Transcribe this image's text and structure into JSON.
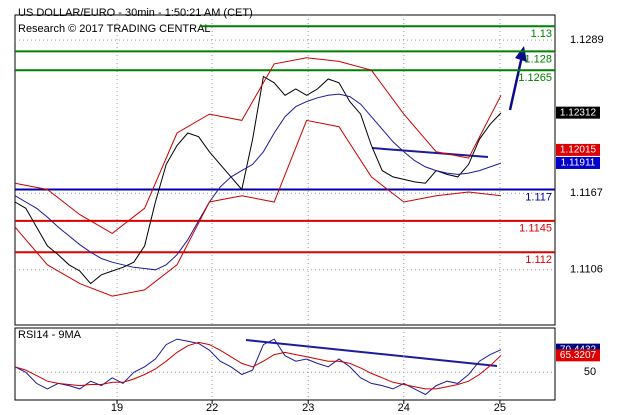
{
  "chart_data": [
    {
      "type": "line",
      "title": "US DOLLAR/EURO - 30min - 1:50:21 AM (CET)",
      "subtitle": "Research © 2017 TRADING CENTRAL",
      "xlim": [
        0,
        100
      ],
      "ylim": [
        1.1062,
        1.1309
      ],
      "xticks": [
        {
          "value": 18.9,
          "label": "19"
        },
        {
          "value": 36.5,
          "label": "22"
        },
        {
          "value": 54.3,
          "label": "23"
        },
        {
          "value": 72,
          "label": "24"
        },
        {
          "value": 89.8,
          "label": "25"
        }
      ],
      "yticks": [
        1.1289,
        1.1167,
        1.1106
      ],
      "grid": true,
      "series": [
        {
          "color": "#000000",
          "x": [
            0,
            2,
            4,
            6,
            8,
            10,
            12,
            14,
            16,
            18,
            20,
            22,
            24,
            26,
            28,
            30,
            32,
            34,
            36,
            38,
            40,
            42,
            44,
            46,
            48,
            50,
            52,
            54,
            56,
            58,
            60,
            62,
            64,
            66,
            68,
            70,
            72,
            74,
            76,
            78,
            80,
            82,
            84,
            86,
            88,
            90
          ],
          "values": [
            1.116,
            1.1155,
            1.114,
            1.1125,
            1.1118,
            1.111,
            1.1105,
            1.1095,
            1.1102,
            1.1105,
            1.1108,
            1.1112,
            1.1125,
            1.116,
            1.119,
            1.1205,
            1.1215,
            1.1212,
            1.12,
            1.119,
            1.118,
            1.117,
            1.121,
            1.126,
            1.1255,
            1.1245,
            1.125,
            1.1245,
            1.125,
            1.1258,
            1.1255,
            1.124,
            1.123,
            1.1205,
            1.1185,
            1.118,
            1.1178,
            1.1176,
            1.1175,
            1.1185,
            1.1182,
            1.118,
            1.119,
            1.121,
            1.1222,
            1.1231
          ]
        },
        {
          "color": "#1c1c9c",
          "x": [
            0,
            2,
            4,
            6,
            8,
            10,
            12,
            14,
            16,
            18,
            20,
            22,
            24,
            26,
            28,
            30,
            32,
            34,
            36,
            38,
            40,
            42,
            44,
            46,
            48,
            50,
            52,
            54,
            56,
            58,
            60,
            62,
            64,
            66,
            68,
            70,
            72,
            74,
            76,
            78,
            80,
            82,
            84,
            86,
            88,
            90
          ],
          "values": [
            1.1165,
            1.116,
            1.1155,
            1.1148,
            1.114,
            1.1133,
            1.1126,
            1.112,
            1.1115,
            1.1112,
            1.111,
            1.1108,
            1.1107,
            1.1106,
            1.111,
            1.1118,
            1.113,
            1.1145,
            1.116,
            1.1172,
            1.118,
            1.1185,
            1.119,
            1.12,
            1.1215,
            1.1228,
            1.1236,
            1.124,
            1.1243,
            1.1245,
            1.1246,
            1.1244,
            1.1238,
            1.1228,
            1.1218,
            1.1208,
            1.12,
            1.1193,
            1.1188,
            1.1185,
            1.1183,
            1.1182,
            1.1183,
            1.1185,
            1.1188,
            1.1191
          ]
        },
        {
          "color": "#cc0000",
          "x": [
            0,
            6,
            12,
            18,
            24,
            30,
            36,
            42,
            48,
            54,
            60,
            66,
            72,
            78,
            84,
            90
          ],
          "values": [
            1.1175,
            1.117,
            1.115,
            1.1135,
            1.1155,
            1.1215,
            1.123,
            1.1225,
            1.127,
            1.1275,
            1.1272,
            1.1265,
            1.123,
            1.12,
            1.1195,
            1.1245
          ]
        },
        {
          "color": "#cc0000",
          "x": [
            0,
            6,
            12,
            18,
            24,
            30,
            36,
            42,
            48,
            54,
            60,
            66,
            72,
            78,
            84,
            90
          ],
          "values": [
            1.114,
            1.111,
            1.1095,
            1.1085,
            1.109,
            1.111,
            1.116,
            1.1165,
            1.116,
            1.1225,
            1.122,
            1.118,
            1.116,
            1.1165,
            1.1168,
            1.1165
          ]
        }
      ],
      "levels": [
        {
          "value": 1.13,
          "color": "#008000"
        },
        {
          "value": 1.128,
          "color": "#008000"
        },
        {
          "value": 1.1265,
          "color": "#008000"
        },
        {
          "value": 1.117,
          "color": "#0000aa"
        },
        {
          "value": 1.1145,
          "color": "#dd0000"
        },
        {
          "value": 1.112,
          "color": "#dd0000"
        }
      ],
      "price_tags": [
        {
          "value": 1.12312,
          "color": "#000000"
        },
        {
          "value": 1.12015,
          "color": "#dd0000"
        },
        {
          "value": 1.11911,
          "color": "#0000cc"
        }
      ]
    },
    {
      "type": "line",
      "title": "RSI14 - 9MA",
      "xlim": [
        0,
        100
      ],
      "ylim": [
        25,
        90
      ],
      "yticks": [
        50
      ],
      "grid": true,
      "series": [
        {
          "color": "#1c1c9c",
          "x": [
            0,
            2,
            4,
            6,
            8,
            10,
            12,
            14,
            16,
            18,
            20,
            22,
            24,
            26,
            28,
            30,
            32,
            34,
            36,
            38,
            40,
            42,
            44,
            46,
            48,
            50,
            52,
            54,
            56,
            58,
            60,
            62,
            64,
            66,
            68,
            70,
            72,
            74,
            76,
            78,
            80,
            82,
            84,
            86,
            88,
            90
          ],
          "values": [
            55,
            50,
            40,
            35,
            40,
            38,
            35,
            42,
            38,
            45,
            40,
            50,
            55,
            62,
            75,
            80,
            78,
            76,
            70,
            60,
            55,
            48,
            52,
            75,
            80,
            65,
            60,
            62,
            58,
            55,
            62,
            55,
            45,
            40,
            38,
            35,
            40,
            35,
            30,
            38,
            42,
            40,
            48,
            60,
            66,
            70.44
          ]
        },
        {
          "color": "#cc0000",
          "x": [
            0,
            2,
            4,
            6,
            8,
            10,
            12,
            14,
            16,
            18,
            20,
            22,
            24,
            26,
            28,
            30,
            32,
            34,
            36,
            38,
            40,
            42,
            44,
            46,
            48,
            50,
            52,
            54,
            56,
            58,
            60,
            62,
            64,
            66,
            68,
            70,
            72,
            74,
            76,
            78,
            80,
            82,
            84,
            86,
            88,
            90
          ],
          "values": [
            55,
            52,
            47,
            42,
            40,
            39,
            38,
            39,
            39,
            41,
            41,
            44,
            48,
            53,
            60,
            68,
            74,
            77,
            75,
            70,
            64,
            58,
            55,
            60,
            66,
            68,
            66,
            64,
            62,
            60,
            60,
            58,
            54,
            49,
            45,
            41,
            39,
            37,
            35,
            35,
            37,
            39,
            42,
            48,
            56,
            65.32
          ]
        }
      ],
      "price_tags": [
        {
          "value": 70.4432,
          "color": "#000080"
        },
        {
          "value": 65.3207,
          "color": "#dd0000"
        }
      ]
    }
  ]
}
